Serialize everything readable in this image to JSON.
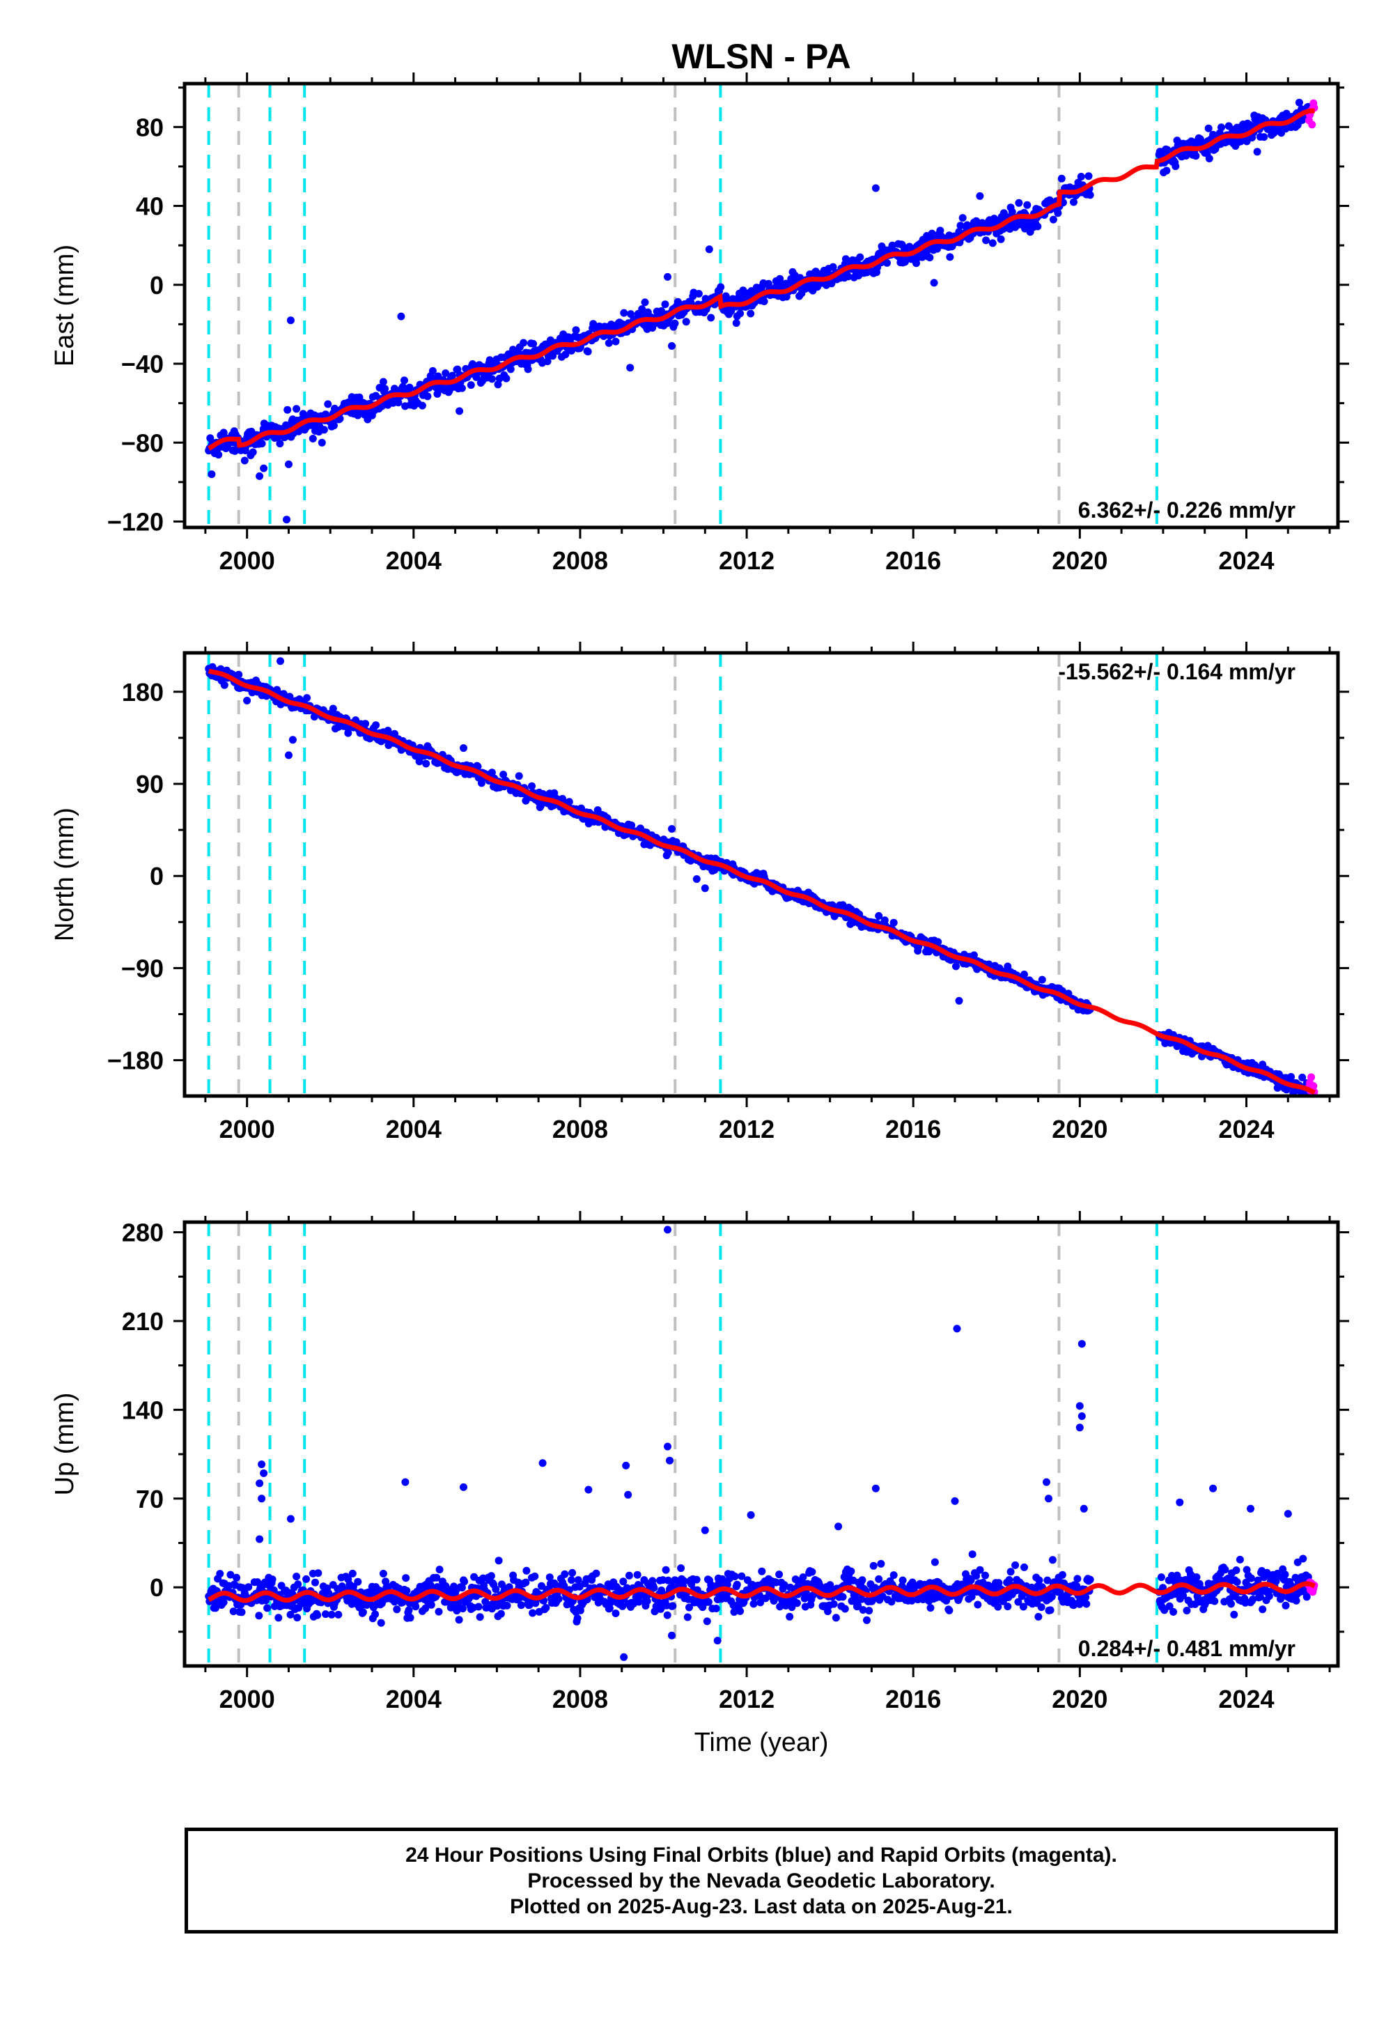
{
  "colors": {
    "final_orbits": "#0000ff",
    "rapid_orbits": "#ff00ff",
    "model": "#ff0000",
    "equipment_change": "#00e5ee",
    "earthquake": "#c0c0c0"
  },
  "chart_data": {
    "type": "scatter",
    "title": "WLSN - PA",
    "xlabel": "Time (year)",
    "xlim": [
      1998.5,
      2026.2
    ],
    "xticks": [
      2000,
      2004,
      2008,
      2012,
      2016,
      2020,
      2024
    ],
    "xtick_labels": [
      "2000",
      "2004",
      "2008",
      "2012",
      "2016",
      "2020",
      "2024"
    ],
    "cyan_dashed_lines": [
      1999.08,
      2000.55,
      2001.38,
      2011.37,
      2021.85
    ],
    "gray_dashed_lines": [
      1999.8,
      2010.28,
      2019.5
    ],
    "data_span": [
      1999.08,
      2025.64
    ],
    "last_data": 2025.64,
    "rapid_start": 2025.5,
    "panels": [
      {
        "ylabel": "East (mm)",
        "ylim": [
          -123,
          102
        ],
        "yticks": [
          -120,
          -80,
          -40,
          0,
          40,
          80
        ],
        "ytick_labels": [
          "−120",
          "−80",
          "−40",
          "0",
          "40",
          "80"
        ],
        "rate_label": "6.362+/- 0.226 mm/yr",
        "rate_position": "bottom-right",
        "rate": 6.362,
        "value_at_2012": 0,
        "scatter_sd": 3.0,
        "offsets": [
          {
            "year": 1999.8,
            "mm": -3
          },
          {
            "year": 2011.37,
            "mm": -5
          },
          {
            "year": 2019.5,
            "mm": 6
          },
          {
            "year": 2021.85,
            "mm": 3
          }
        ],
        "outliers": [
          {
            "x": 1999.15,
            "y": -96
          },
          {
            "x": 2000.3,
            "y": -97
          },
          {
            "x": 2000.4,
            "y": -93
          },
          {
            "x": 2001.0,
            "y": -91
          },
          {
            "x": 2001.05,
            "y": -18
          },
          {
            "x": 2000.95,
            "y": -119
          },
          {
            "x": 2001.8,
            "y": -80
          },
          {
            "x": 2003.7,
            "y": -16
          },
          {
            "x": 2005.1,
            "y": -64
          },
          {
            "x": 2009.2,
            "y": -42
          },
          {
            "x": 2010.1,
            "y": 4
          },
          {
            "x": 2010.2,
            "y": -31
          },
          {
            "x": 2011.1,
            "y": 18
          },
          {
            "x": 2015.1,
            "y": 49
          },
          {
            "x": 2016.5,
            "y": 1
          },
          {
            "x": 2017.6,
            "y": 45
          }
        ]
      },
      {
        "ylabel": "North (mm)",
        "ylim": [
          -215,
          218
        ],
        "yticks": [
          -180,
          -90,
          0,
          90,
          180
        ],
        "ytick_labels": [
          "−180",
          "−90",
          "0",
          "90",
          "180"
        ],
        "rate_label": "-15.562+/- 0.164 mm/yr",
        "rate_position": "top-right",
        "rate": -15.562,
        "value_at_2012": 0,
        "scatter_sd": 3.0,
        "offsets": [],
        "outliers": [
          {
            "x": 2000.8,
            "y": 210
          },
          {
            "x": 2001.0,
            "y": 118
          },
          {
            "x": 2001.1,
            "y": 133
          },
          {
            "x": 2005.2,
            "y": 125
          },
          {
            "x": 2010.2,
            "y": 46
          },
          {
            "x": 2010.8,
            "y": -3
          },
          {
            "x": 2011.0,
            "y": -12
          },
          {
            "x": 2017.1,
            "y": -122
          }
        ]
      },
      {
        "ylabel": "Up (mm)",
        "ylim": [
          -62,
          288
        ],
        "yticks": [
          0,
          70,
          140,
          210,
          280
        ],
        "ytick_labels": [
          "0",
          "70",
          "140",
          "210",
          "280"
        ],
        "rate_label": "0.284+/- 0.481 mm/yr",
        "rate_position": "bottom-right",
        "rate": 0.284,
        "value_at_2012": 0,
        "scatter_sd": 7.0,
        "offsets": [],
        "outliers": [
          {
            "x": 2000.35,
            "y": 97
          },
          {
            "x": 2000.4,
            "y": 90
          },
          {
            "x": 2000.3,
            "y": 82
          },
          {
            "x": 2000.35,
            "y": 70
          },
          {
            "x": 2000.3,
            "y": 38
          },
          {
            "x": 2001.05,
            "y": 54
          },
          {
            "x": 2003.8,
            "y": 83
          },
          {
            "x": 2005.2,
            "y": 79
          },
          {
            "x": 2007.1,
            "y": 98
          },
          {
            "x": 2008.2,
            "y": 77
          },
          {
            "x": 2009.1,
            "y": 96
          },
          {
            "x": 2009.15,
            "y": 73
          },
          {
            "x": 2009.05,
            "y": -55
          },
          {
            "x": 2010.1,
            "y": 282
          },
          {
            "x": 2010.1,
            "y": 111
          },
          {
            "x": 2010.15,
            "y": 100
          },
          {
            "x": 2010.2,
            "y": -38
          },
          {
            "x": 2011.0,
            "y": 45
          },
          {
            "x": 2011.3,
            "y": -42
          },
          {
            "x": 2012.1,
            "y": 57
          },
          {
            "x": 2014.2,
            "y": 48
          },
          {
            "x": 2015.1,
            "y": 78
          },
          {
            "x": 2017.05,
            "y": 204
          },
          {
            "x": 2017.0,
            "y": 68
          },
          {
            "x": 2019.2,
            "y": 83
          },
          {
            "x": 2019.25,
            "y": 70
          },
          {
            "x": 2020.05,
            "y": 192
          },
          {
            "x": 2020.0,
            "y": 143
          },
          {
            "x": 2020.05,
            "y": 135
          },
          {
            "x": 2020.0,
            "y": 126
          },
          {
            "x": 2020.1,
            "y": 62
          },
          {
            "x": 2022.4,
            "y": 67
          },
          {
            "x": 2023.2,
            "y": 78
          },
          {
            "x": 2024.1,
            "y": 62
          },
          {
            "x": 2025.0,
            "y": 58
          }
        ]
      }
    ]
  },
  "footer": {
    "line1": "24 Hour Positions Using Final Orbits (blue) and Rapid Orbits (magenta).",
    "line2": "Processed by the Nevada Geodetic Laboratory.",
    "line3": "Plotted on 2025-Aug-23. Last data on 2025-Aug-21."
  }
}
